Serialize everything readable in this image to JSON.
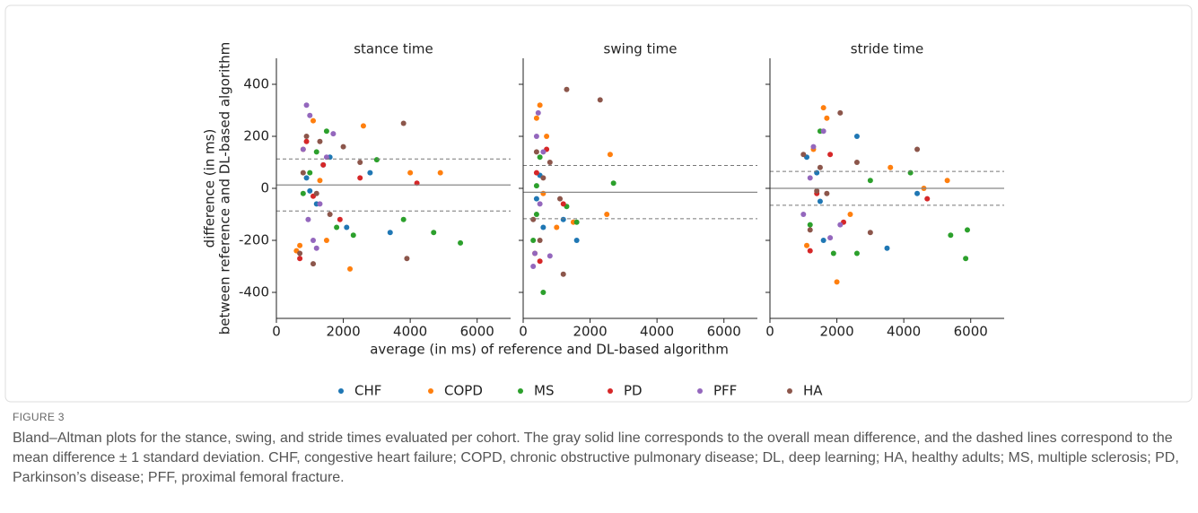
{
  "figure": {
    "xlabel": "average (in ms) of reference and DL-based algorithm",
    "ylabel": [
      "difference (in ms)",
      "between reference and DL-based algorithm"
    ]
  },
  "chart_data": [
    {
      "type": "scatter",
      "title": "stance time",
      "xlim": [
        0,
        7000
      ],
      "xticks": [
        0,
        2000,
        4000,
        6000
      ],
      "ylim": [
        -500,
        500
      ],
      "yticks": [
        -400,
        -200,
        0,
        200,
        400
      ],
      "mean_line": 13,
      "sd_lines": [
        113,
        -87
      ],
      "series": [
        {
          "name": "CHF",
          "color": "#1f77b4",
          "x": [
            900,
            1200,
            1600,
            2100,
            2800,
            3400,
            1000,
            1400
          ],
          "values": [
            40,
            -60,
            120,
            -150,
            60,
            -170,
            -10,
            90
          ]
        },
        {
          "name": "COPD",
          "color": "#ff7f0e",
          "x": [
            600,
            800,
            1100,
            1500,
            2200,
            2600,
            4900,
            4000,
            700,
            1300
          ],
          "values": [
            -240,
            150,
            260,
            -200,
            -310,
            240,
            60,
            60,
            -220,
            30
          ]
        },
        {
          "name": "MS",
          "color": "#2ca02c",
          "x": [
            800,
            1200,
            1500,
            1800,
            3800,
            4700,
            5500,
            2300,
            1000,
            3000
          ],
          "values": [
            -20,
            140,
            220,
            -150,
            -120,
            -170,
            -210,
            -180,
            60,
            110
          ]
        },
        {
          "name": "PD",
          "color": "#d62728",
          "x": [
            700,
            1100,
            1400,
            1900,
            4200,
            2500,
            900
          ],
          "values": [
            -270,
            -30,
            90,
            -120,
            20,
            40,
            180
          ]
        },
        {
          "name": "PFF",
          "color": "#9467bd",
          "x": [
            900,
            1000,
            1100,
            1200,
            800,
            1300,
            1700,
            1500,
            950
          ],
          "values": [
            320,
            280,
            -200,
            -230,
            150,
            -60,
            210,
            120,
            -120
          ]
        },
        {
          "name": "HA",
          "color": "#8c564b",
          "x": [
            700,
            900,
            1100,
            1300,
            1600,
            2000,
            2500,
            3800,
            3900,
            1200,
            800
          ],
          "values": [
            -250,
            200,
            -290,
            180,
            -100,
            160,
            100,
            250,
            -270,
            -20,
            60
          ]
        }
      ]
    },
    {
      "type": "scatter",
      "title": "swing time",
      "xlim": [
        0,
        7000
      ],
      "xticks": [
        0,
        2000,
        4000,
        6000
      ],
      "mean_line": -15,
      "sd_lines": [
        88,
        -117
      ],
      "series": [
        {
          "x": [
            400,
            500,
            600,
            1200,
            1600
          ],
          "values": [
            -40,
            50,
            -150,
            -120,
            -200
          ]
        },
        {
          "x": [
            350,
            400,
            500,
            700,
            1000,
            2500,
            2600,
            1500,
            600
          ],
          "values": [
            -250,
            270,
            320,
            200,
            -150,
            -100,
            130,
            -130,
            -20
          ]
        },
        {
          "x": [
            300,
            400,
            500,
            600,
            2700,
            1300,
            1600,
            400
          ],
          "values": [
            -200,
            -100,
            120,
            -400,
            20,
            -70,
            -130,
            10
          ]
        },
        {
          "x": [
            400,
            500,
            700,
            1200
          ],
          "values": [
            60,
            -280,
            150,
            -60
          ]
        },
        {
          "x": [
            300,
            350,
            400,
            450,
            500,
            600,
            800
          ],
          "values": [
            -300,
            -250,
            200,
            290,
            -60,
            140,
            -260
          ]
        },
        {
          "x": [
            300,
            400,
            500,
            800,
            1100,
            2300,
            1300,
            1200,
            600
          ],
          "values": [
            -120,
            140,
            -200,
            100,
            -40,
            340,
            380,
            -330,
            40
          ]
        }
      ]
    },
    {
      "type": "scatter",
      "title": "stride time",
      "xlim": [
        0,
        7000
      ],
      "xticks": [
        0,
        2000,
        4000,
        6000
      ],
      "mean_line": 0,
      "sd_lines": [
        65,
        -65
      ],
      "series": [
        {
          "x": [
            1100,
            1500,
            1600,
            2600,
            3500,
            4400,
            1400
          ],
          "values": [
            120,
            -50,
            -200,
            200,
            -230,
            -20,
            60
          ]
        },
        {
          "x": [
            1100,
            1300,
            1600,
            2000,
            3600,
            5300,
            1700,
            2400,
            4600
          ],
          "values": [
            -220,
            150,
            310,
            -360,
            80,
            30,
            270,
            -100,
            0
          ]
        },
        {
          "x": [
            1200,
            1500,
            1900,
            2600,
            5400,
            5900,
            5850,
            4200,
            3000
          ],
          "values": [
            -140,
            220,
            -250,
            -250,
            -180,
            -160,
            -270,
            60,
            30
          ]
        },
        {
          "x": [
            1200,
            1400,
            2200,
            4700,
            1800
          ],
          "values": [
            -240,
            -20,
            -130,
            -40,
            130
          ]
        },
        {
          "x": [
            1000,
            1300,
            1600,
            1800,
            2100,
            1200
          ],
          "values": [
            -100,
            160,
            220,
            -190,
            -140,
            40
          ]
        },
        {
          "x": [
            1000,
            1200,
            1500,
            1700,
            2100,
            3000,
            4400,
            1400,
            2600
          ],
          "values": [
            130,
            -160,
            80,
            -20,
            290,
            -170,
            150,
            -10,
            100
          ]
        }
      ]
    }
  ],
  "caption": {
    "label": "FIGURE 3",
    "text": "Bland–Altman plots for the stance, swing, and stride times evaluated per cohort. The gray solid line corresponds to the overall mean difference, and the dashed lines correspond to the mean difference ± 1 standard deviation. CHF, congestive heart failure; COPD, chronic obstructive pulmonary disease; DL, deep learning; HA, healthy adults; MS, multiple sclerosis; PD, Parkinson’s disease; PFF, proximal femoral fracture."
  }
}
